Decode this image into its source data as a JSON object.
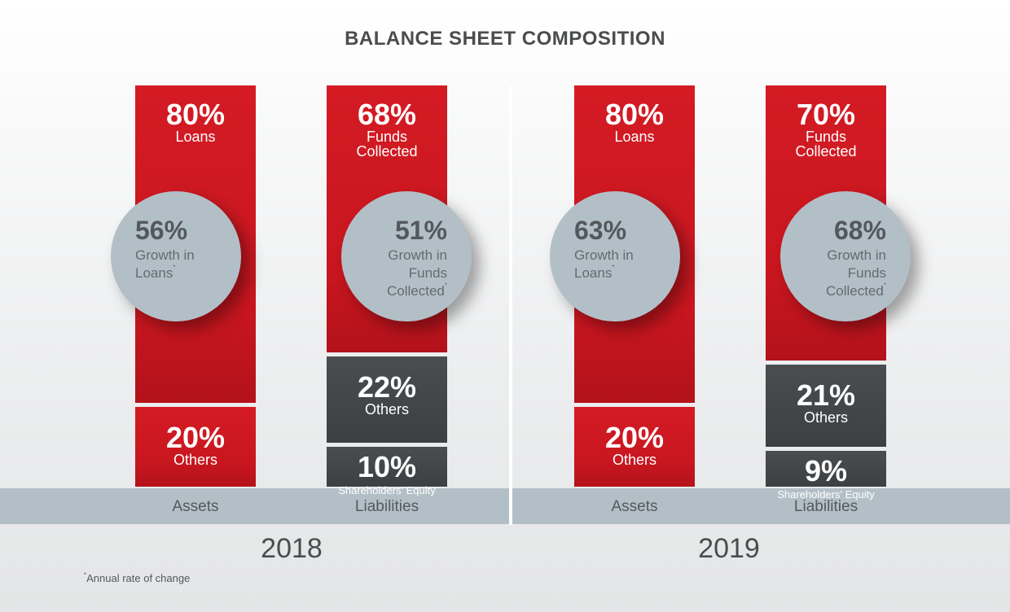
{
  "chart_data": {
    "type": "stacked-bar",
    "title": "BALANCE SHEET COMPOSITION",
    "footnote": "*Annual rate of change",
    "footnote_marker": "*",
    "colors": {
      "red": "#c8161f",
      "dark": "#414447",
      "circle": "#b3bfc7"
    },
    "years": [
      {
        "year": "2018",
        "columns": [
          {
            "category": "Assets",
            "segments": [
              {
                "value": 80,
                "pct": "80%",
                "label": "Loans",
                "color": "red"
              },
              {
                "value": 20,
                "pct": "20%",
                "label": "Others",
                "color": "red"
              }
            ],
            "circle": {
              "value": 56,
              "pct": "56%",
              "lines": [
                "Growth in",
                "Loans*"
              ]
            }
          },
          {
            "category": "Liabilities",
            "segments": [
              {
                "value": 68,
                "pct": "68%",
                "label": "Funds Collected",
                "color": "red"
              },
              {
                "value": 22,
                "pct": "22%",
                "label": "Others",
                "color": "dark"
              },
              {
                "value": 10,
                "pct": "10%",
                "label": "Shareholders' Equity",
                "color": "dark"
              }
            ],
            "circle": {
              "value": 51,
              "pct": "51%",
              "lines": [
                "Growth in",
                "Funds",
                "Collected*"
              ]
            }
          }
        ]
      },
      {
        "year": "2019",
        "columns": [
          {
            "category": "Assets",
            "segments": [
              {
                "value": 80,
                "pct": "80%",
                "label": "Loans",
                "color": "red"
              },
              {
                "value": 20,
                "pct": "20%",
                "label": "Others",
                "color": "red"
              }
            ],
            "circle": {
              "value": 63,
              "pct": "63%",
              "lines": [
                "Growth in",
                "Loans*"
              ]
            }
          },
          {
            "category": "Liabilities",
            "segments": [
              {
                "value": 70,
                "pct": "70%",
                "label": "Funds Collected",
                "color": "red"
              },
              {
                "value": 21,
                "pct": "21%",
                "label": "Others",
                "color": "dark"
              },
              {
                "value": 9,
                "pct": "9%",
                "label": "Shareholders' Equity",
                "color": "dark"
              }
            ],
            "circle": {
              "value": 68,
              "pct": "68%",
              "lines": [
                "Growth in",
                "Funds",
                "Collected*"
              ]
            }
          }
        ]
      }
    ]
  }
}
